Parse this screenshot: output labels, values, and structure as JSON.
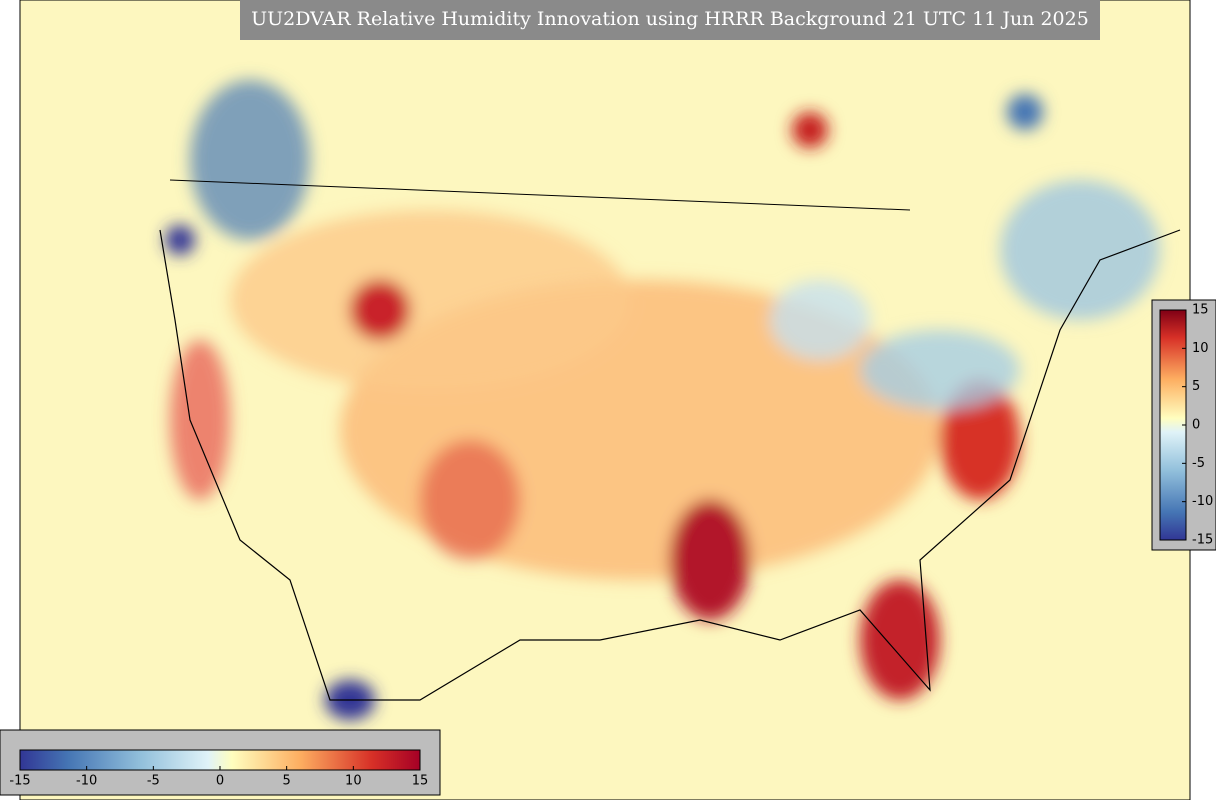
{
  "title": "UU2DVAR Relative Humidity Innovation using HRRR Background 21 UTC 11 Jun 2025",
  "colorbars": [
    {
      "ticks": [
        15,
        10,
        5,
        0,
        -5,
        -10,
        -15
      ]
    },
    {
      "ticks": [
        -15,
        -10,
        -5,
        0,
        5,
        10,
        15
      ]
    }
  ]
}
